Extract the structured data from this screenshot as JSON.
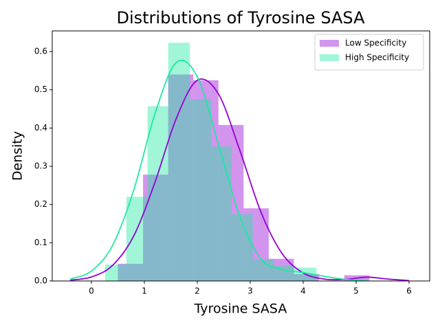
{
  "chart_data": {
    "type": "histogram_kde",
    "title": "Distributions of Tyrosine SASA",
    "xlabel": "Tyrosine SASA",
    "ylabel": "Density",
    "xlim": [
      -0.74,
      6.39
    ],
    "ylim": [
      0,
      0.654
    ],
    "xticks": [
      0,
      1,
      2,
      3,
      4,
      5,
      6
    ],
    "yticks": [
      {
        "value": 0,
        "label": "0.0"
      },
      0.1,
      0.2,
      0.3,
      0.4,
      0.5,
      0.6
    ],
    "legend": "upper right",
    "series": [
      {
        "name": "Low Specificity",
        "color": "#9400d3",
        "bins": [
          0.5,
          0.975,
          1.45,
          1.925,
          2.4,
          2.875,
          3.35,
          3.825,
          4.3,
          4.775,
          5.25
        ],
        "values": [
          0.045,
          0.278,
          0.54,
          0.525,
          0.408,
          0.19,
          0.058,
          0.018,
          0,
          0.015
        ],
        "kde_x": [
          -0.4,
          0,
          0.4,
          0.8,
          1.2,
          1.6,
          2.0,
          2.4,
          2.8,
          3.2,
          3.6,
          4.0,
          4.4,
          4.8,
          5.2,
          5.6,
          6.0
        ],
        "kde_values": [
          0.002,
          0.0105,
          0.041,
          0.118,
          0.258,
          0.424,
          0.525,
          0.489,
          0.343,
          0.181,
          0.072,
          0.021,
          0.005,
          0.004,
          0.01,
          0.005,
          0.001
        ]
      },
      {
        "name": "High Specificity",
        "color": "#1de9a0",
        "bins": [
          0.26,
          0.66,
          1.06,
          1.45,
          1.86,
          2.26,
          2.65,
          3.05,
          3.45,
          3.85,
          4.25
        ],
        "values": [
          0.043,
          0.22,
          0.457,
          0.623,
          0.475,
          0.352,
          0.175,
          0.057,
          0.04,
          0.035
        ],
        "kde_x": [
          -0.4,
          0,
          0.4,
          0.8,
          1.2,
          1.6,
          2.0,
          2.4,
          2.8,
          3.2,
          3.6,
          4.0,
          4.4,
          4.8,
          5.2
        ],
        "kde_values": [
          0.005,
          0.026,
          0.093,
          0.238,
          0.437,
          0.571,
          0.534,
          0.357,
          0.17,
          0.058,
          0.03,
          0.022,
          0.012,
          0.004,
          0.001
        ]
      }
    ]
  }
}
